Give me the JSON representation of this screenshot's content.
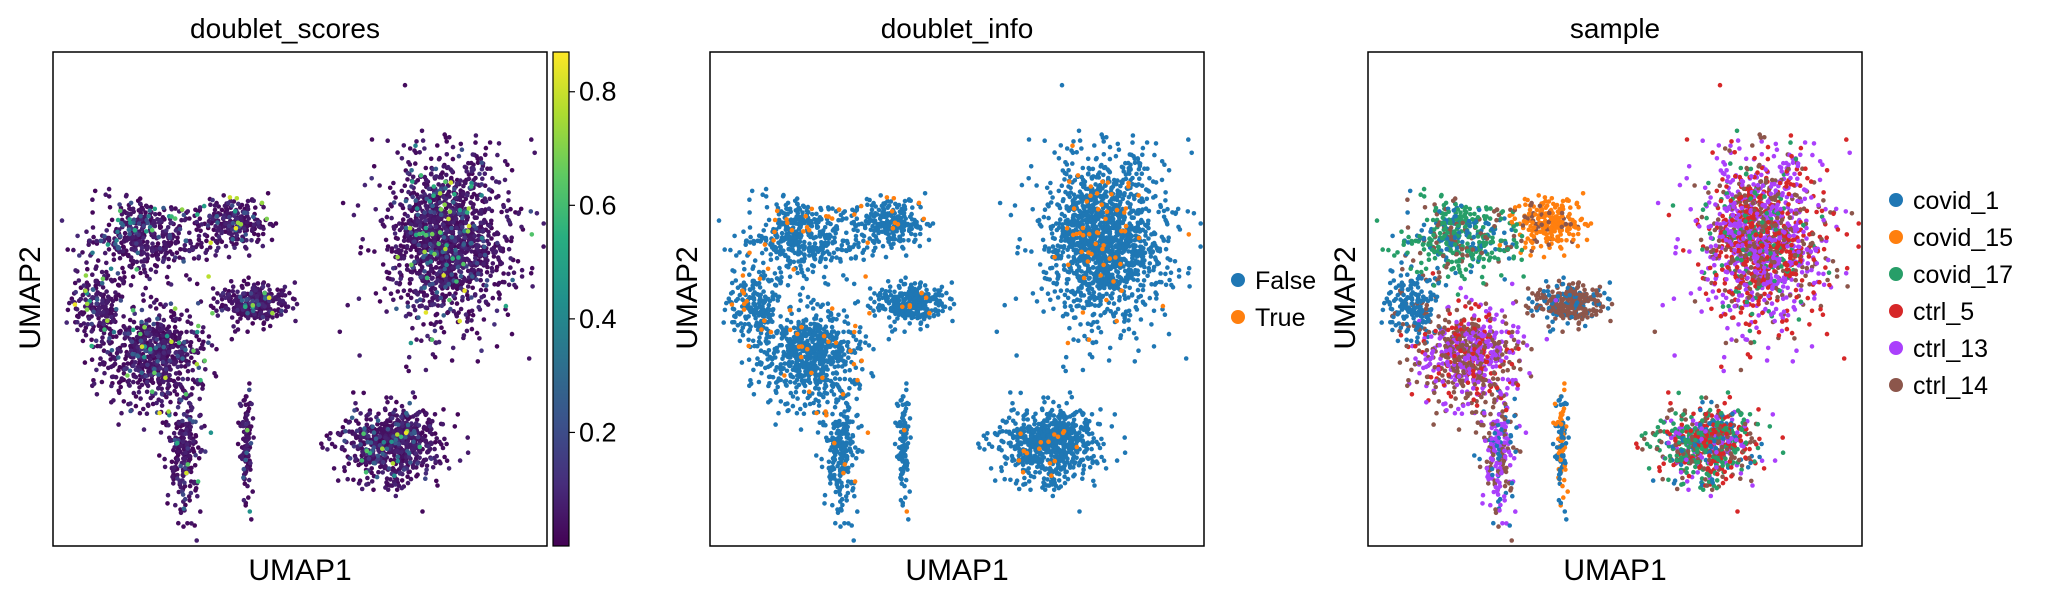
{
  "panels": [
    {
      "id": "scores",
      "title": "doublet_scores",
      "xlabel": "UMAP1",
      "ylabel": "UMAP2"
    },
    {
      "id": "info",
      "title": "doublet_info",
      "xlabel": "UMAP1",
      "ylabel": "UMAP2"
    },
    {
      "id": "sample",
      "title": "sample",
      "xlabel": "UMAP1",
      "ylabel": "UMAP2"
    }
  ],
  "colorbar": {
    "colormap": "viridis",
    "range": [
      0.0,
      0.87
    ],
    "ticks": [
      "0.2",
      "0.4",
      "0.6",
      "0.8"
    ]
  },
  "legend_info": [
    {
      "label": "False",
      "color": "#1f77b4"
    },
    {
      "label": "True",
      "color": "#ff7f0e"
    }
  ],
  "legend_sample": [
    {
      "label": "covid_1",
      "color": "#1f77b4"
    },
    {
      "label": "covid_15",
      "color": "#ff7f0e"
    },
    {
      "label": "covid_17",
      "color": "#279e68"
    },
    {
      "label": "ctrl_5",
      "color": "#d62728"
    },
    {
      "label": "ctrl_13",
      "color": "#aa40fc"
    },
    {
      "label": "ctrl_14",
      "color": "#8c564b"
    }
  ],
  "chart_data": [
    {
      "type": "scatter",
      "title": "doublet_scores",
      "xlabel": "UMAP1",
      "ylabel": "UMAP2",
      "color_by": "doublet_scores",
      "colorbar": {
        "min": 0.0,
        "max": 0.87,
        "ticks": [
          0.2,
          0.4,
          0.6,
          0.8
        ],
        "colormap": "viridis"
      },
      "clusters": [
        {
          "id": "left-upper",
          "center": [
            -8.5,
            4.5
          ],
          "spread": [
            2.6,
            1.7
          ],
          "n": 450,
          "composition": {
            "covid_17": 0.6,
            "covid_1": 0.25,
            "ctrl_14": 0.15
          }
        },
        {
          "id": "top-mid",
          "center": [
            -3.5,
            5.2
          ],
          "spread": [
            1.7,
            1.1
          ],
          "n": 260,
          "composition": {
            "covid_15": 0.85,
            "ctrl_14": 0.15
          }
        },
        {
          "id": "far-left",
          "center": [
            -11.0,
            1.3
          ],
          "spread": [
            1.2,
            1.5
          ],
          "n": 200,
          "composition": {
            "covid_1": 0.9,
            "ctrl_14": 0.1
          }
        },
        {
          "id": "left-lower",
          "center": [
            -8.0,
            -1.2
          ],
          "spread": [
            2.4,
            2.2
          ],
          "n": 700,
          "composition": {
            "ctrl_14": 0.45,
            "ctrl_13": 0.4,
            "ctrl_5": 0.15
          }
        },
        {
          "id": "mid-cluster",
          "center": [
            -2.5,
            1.3
          ],
          "spread": [
            1.6,
            0.8
          ],
          "n": 320,
          "composition": {
            "ctrl_14": 0.75,
            "covid_1": 0.25
          }
        },
        {
          "id": "bottom-left-tail",
          "center": [
            -6.3,
            -6.0
          ],
          "spread": [
            0.8,
            2.4
          ],
          "n": 220,
          "composition": {
            "ctrl_13": 0.5,
            "ctrl_14": 0.3,
            "covid_1": 0.2
          }
        },
        {
          "id": "mid-column",
          "center": [
            -2.9,
            -5.2
          ],
          "spread": [
            0.3,
            2.2
          ],
          "n": 110,
          "composition": {
            "covid_1": 0.6,
            "covid_15": 0.4
          }
        },
        {
          "id": "right-large",
          "center": [
            8.0,
            4.3
          ],
          "spread": [
            3.0,
            3.6
          ],
          "n": 1500,
          "composition": {
            "ctrl_13": 0.4,
            "ctrl_5": 0.3,
            "ctrl_14": 0.2,
            "covid_17": 0.1
          }
        },
        {
          "id": "bottom-right",
          "center": [
            5.0,
            -5.5
          ],
          "spread": [
            2.3,
            1.6
          ],
          "n": 700,
          "composition": {
            "covid_17": 0.35,
            "ctrl_14": 0.2,
            "ctrl_5": 0.2,
            "ctrl_13": 0.15,
            "covid_1": 0.1
          }
        }
      ],
      "xlim": [
        -13,
        13
      ],
      "ylim": [
        -10,
        13
      ]
    },
    {
      "type": "scatter",
      "title": "doublet_info",
      "xlabel": "UMAP1",
      "ylabel": "UMAP2",
      "color_by": "doublet_info",
      "categories": [
        "False",
        "True"
      ],
      "colors": [
        "#1f77b4",
        "#ff7f0e"
      ],
      "true_fraction": 0.03
    },
    {
      "type": "scatter",
      "title": "sample",
      "xlabel": "UMAP1",
      "ylabel": "UMAP2",
      "color_by": "sample",
      "categories": [
        "covid_1",
        "covid_15",
        "covid_17",
        "ctrl_5",
        "ctrl_13",
        "ctrl_14"
      ],
      "colors": [
        "#1f77b4",
        "#ff7f0e",
        "#279e68",
        "#d62728",
        "#aa40fc",
        "#8c564b"
      ]
    }
  ]
}
